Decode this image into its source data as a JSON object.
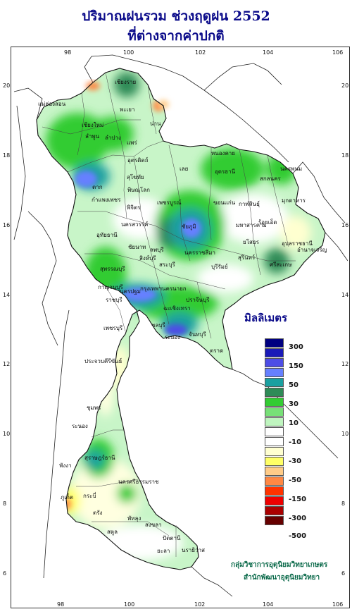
{
  "title_line1": "ปริมาณฝนรวม ช่วงฤดูฝน 2552",
  "title_line2": "ที่ต่างจากค่าปกติ",
  "x_ticks": [
    "98",
    "100",
    "102",
    "104",
    "106"
  ],
  "y_ticks": [
    "20",
    "18",
    "16",
    "14",
    "12",
    "10",
    "8",
    "6"
  ],
  "legend": {
    "title": "มิลลิเมตร",
    "colors": [
      "#000080",
      "#1a1ab8",
      "#4d4de6",
      "#6680ff",
      "#1aa0a0",
      "#2e8b57",
      "#33cc33",
      "#77e077",
      "#bff5bf",
      "#ffffff",
      "#ffffff",
      "#ffffd0",
      "#ffff66",
      "#ffcc88",
      "#ff8844",
      "#ff3300",
      "#ee0000",
      "#aa0000",
      "#660000"
    ],
    "labels": [
      "300",
      "150",
      "50",
      "30",
      "10",
      "-10",
      "-30",
      "-50",
      "-150",
      "-300",
      "-500"
    ]
  },
  "provinces": [
    "เชียงราย",
    "เชียงใหม่",
    "แม่ฮ่องสอน",
    "ลำพูน",
    "ลำปาง",
    "พะเยา",
    "น่าน",
    "แพร่",
    "อุตรดิตถ์",
    "ตาก",
    "สุโขทัย",
    "พิษณุโลก",
    "กำแพงเพชร",
    "พิจิตร",
    "เพชรบูรณ์",
    "นครสวรรค์",
    "อุทัยธานี",
    "ชัยนาท",
    "ลพบุรี",
    "สิงห์บุรี",
    "สุพรรณบุรี",
    "กาญจนบุรี",
    "ราชบุรี",
    "นครปฐม",
    "กรุงเทพฯ",
    "ชลบุรี",
    "ระยอง",
    "จันทบุรี",
    "ตราด",
    "ฉะเชิงเทรา",
    "ปราจีนบุรี",
    "นครนายก",
    "สระบุรี",
    "เลย",
    "หนองคาย",
    "อุดรธานี",
    "สกลนคร",
    "นครพนม",
    "มุกดาหาร",
    "ขอนแก่น",
    "กาฬสินธุ์",
    "ร้อยเอ็ด",
    "มหาสารคาม",
    "ชัยภูมิ",
    "นครราชสีมา",
    "บุรีรัมย์",
    "สุรินทร์",
    "ศรีสะเกษ",
    "อุบลราชธานี",
    "ยโสธร",
    "อำนาจเจริญ",
    "เพชรบุรี",
    "ประจวบคีรีขันธ์",
    "ชุมพร",
    "ระนอง",
    "สุราษฎร์ธานี",
    "พังงา",
    "ภูเก็ต",
    "กระบี่",
    "นครศรีธรรมราช",
    "ตรัง",
    "พัทลุง",
    "สงขลา",
    "สตูล",
    "ปัตตานี",
    "ยะลา",
    "นราธิวาส"
  ],
  "credit_line1": "กลุ่มวิชาการอุตุนิยมวิทยาเกษตร",
  "credit_line2": "สำนักพัฒนาอุตุนิยมวิทยา"
}
